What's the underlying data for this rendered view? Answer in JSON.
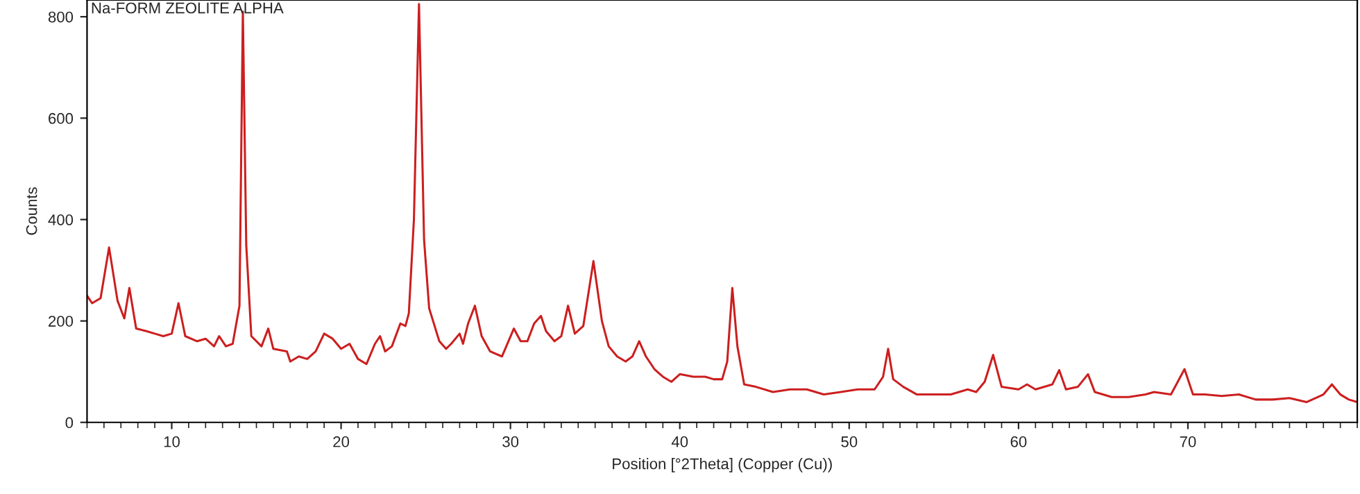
{
  "chart_data": {
    "type": "line",
    "title": "Na-FORM ZEOLITE ALPHA",
    "xlabel": "Position [°2Theta] (Copper (Cu))",
    "ylabel": "Counts",
    "xlim": [
      5,
      80
    ],
    "ylim": [
      0,
      833
    ],
    "xticks": [
      10,
      20,
      30,
      40,
      50,
      60,
      70
    ],
    "yticks": [
      0,
      200,
      400,
      600,
      800
    ],
    "grid": false,
    "legend": false,
    "series": [
      {
        "color": "#cc1f1f",
        "x": [
          5.0,
          5.3,
          5.8,
          6.3,
          6.8,
          7.2,
          7.5,
          7.9,
          8.5,
          9.0,
          9.5,
          10.0,
          10.4,
          10.8,
          11.5,
          12.0,
          12.5,
          12.8,
          13.2,
          13.6,
          14.0,
          14.2,
          14.4,
          14.7,
          15.3,
          15.7,
          16.0,
          16.8,
          17.0,
          17.5,
          18.0,
          18.5,
          19.0,
          19.5,
          20.0,
          20.5,
          21.0,
          21.5,
          22.0,
          22.3,
          22.6,
          23.0,
          23.5,
          23.8,
          24.0,
          24.3,
          24.6,
          24.9,
          25.2,
          25.8,
          26.2,
          26.5,
          27.0,
          27.2,
          27.5,
          27.9,
          28.3,
          28.8,
          29.5,
          30.2,
          30.6,
          31.0,
          31.4,
          31.8,
          32.1,
          32.6,
          33.0,
          33.4,
          33.8,
          34.3,
          34.9,
          35.4,
          35.8,
          36.3,
          36.8,
          37.2,
          37.6,
          38.0,
          38.5,
          39.0,
          39.5,
          40.0,
          40.8,
          41.5,
          42.0,
          42.5,
          42.8,
          43.1,
          43.4,
          43.8,
          44.5,
          45.5,
          46.5,
          47.5,
          48.5,
          49.5,
          50.5,
          51.5,
          52.0,
          52.3,
          52.6,
          53.2,
          54.0,
          55.0,
          56.0,
          57.0,
          57.5,
          58.0,
          58.5,
          59.0,
          60.0,
          60.5,
          61.0,
          62.0,
          62.4,
          62.8,
          63.5,
          64.1,
          64.5,
          65.5,
          66.5,
          67.5,
          68.0,
          69.0,
          69.8,
          70.3,
          71.0,
          72.0,
          73.0,
          74.0,
          75.0,
          76.0,
          77.0,
          78.0,
          78.5,
          79.0,
          79.5,
          80.0
        ],
        "values": [
          250,
          235,
          245,
          345,
          240,
          205,
          265,
          185,
          180,
          175,
          170,
          175,
          235,
          170,
          160,
          165,
          150,
          170,
          150,
          155,
          230,
          810,
          350,
          170,
          150,
          185,
          145,
          140,
          120,
          130,
          125,
          140,
          175,
          165,
          145,
          155,
          125,
          115,
          155,
          170,
          140,
          150,
          195,
          190,
          215,
          400,
          825,
          360,
          225,
          160,
          145,
          155,
          175,
          155,
          195,
          230,
          170,
          140,
          130,
          185,
          160,
          160,
          195,
          210,
          180,
          160,
          170,
          230,
          175,
          190,
          318,
          200,
          150,
          130,
          120,
          130,
          160,
          130,
          105,
          90,
          80,
          95,
          90,
          90,
          85,
          85,
          120,
          265,
          150,
          75,
          70,
          60,
          65,
          65,
          55,
          60,
          65,
          65,
          90,
          145,
          85,
          70,
          55,
          55,
          55,
          65,
          60,
          80,
          133,
          70,
          65,
          75,
          65,
          75,
          103,
          65,
          70,
          95,
          60,
          50,
          50,
          55,
          60,
          55,
          105,
          55,
          55,
          52,
          55,
          45,
          45,
          48,
          40,
          55,
          75,
          55,
          45,
          40
        ]
      }
    ]
  }
}
